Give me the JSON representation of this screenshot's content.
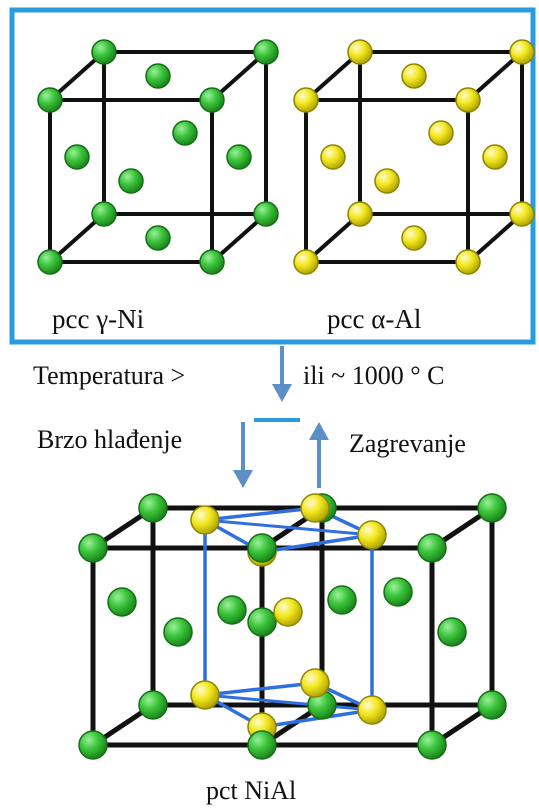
{
  "labels": {
    "gamma_ni": "pcc γ-Ni",
    "alpha_al": "pcc α-Al",
    "temperature_left": "Temperatura >",
    "temperature_right": "ili ~ 1000 ° C",
    "fast_cooling": "Brzo hlađenje",
    "heating": "Zagrevanje",
    "nial": "pct NiAl"
  },
  "colors": {
    "frame": "#2b9be0",
    "ni_atom": "#3cc43c",
    "al_atom": "#f2e81e",
    "cell_edge": "#111111",
    "nial_bond": "#2f6fe0",
    "arrow": "#5b8fc6"
  }
}
